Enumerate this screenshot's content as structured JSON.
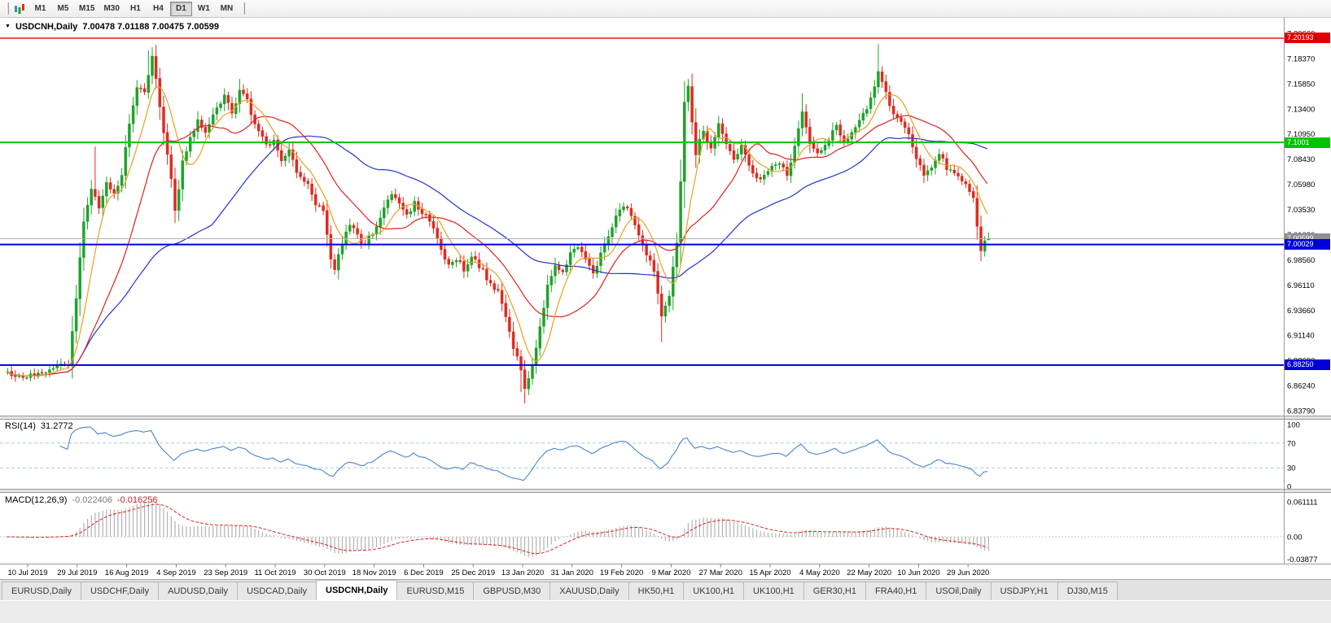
{
  "toolbar": {
    "timeframes": [
      {
        "label": "M1"
      },
      {
        "label": "M5"
      },
      {
        "label": "M15"
      },
      {
        "label": "M30"
      },
      {
        "label": "H1"
      },
      {
        "label": "H4"
      },
      {
        "label": "D1",
        "active": true
      },
      {
        "label": "W1"
      },
      {
        "label": "MN"
      }
    ]
  },
  "chart": {
    "symbol_title": "USDCNH,Daily",
    "ohlc_readout": "7.00478 7.01188 7.00475 7.00599",
    "rsi_name": "RSI(14)",
    "rsi_value": "31.2772",
    "macd_name": "MACD(12,26,9)",
    "macd_value_main": "-0.022406",
    "macd_value_signal": "-0.016256"
  },
  "chart_data": {
    "type": "candlestick",
    "title": "USDCNH,Daily",
    "open": "7.00478",
    "high": "7.01188",
    "low": "7.00475",
    "close": "7.00599",
    "price_range": [
      6.8379,
      7.2066
    ],
    "y_ticks": [
      "7.20660",
      "7.18370",
      "7.15850",
      "7.13400",
      "7.10950",
      "7.08430",
      "7.05980",
      "7.03530",
      "7.01080",
      "6.98560",
      "6.96110",
      "6.93660",
      "6.91140",
      "6.88690",
      "6.86240",
      "6.83790"
    ],
    "x_labels": [
      "10 Jul 2019",
      "29 Jul 2019",
      "16 Aug 2019",
      "4 Sep 2019",
      "23 Sep 2019",
      "11 Oct 2019",
      "30 Oct 2019",
      "18 Nov 2019",
      "6 Dec 2019",
      "25 Dec 2019",
      "13 Jan 2020",
      "31 Jan 2020",
      "19 Feb 2020",
      "9 Mar 2020",
      "27 Mar 2020",
      "15 Apr 2020",
      "4 May 2020",
      "22 May 2020",
      "10 Jun 2020",
      "29 Jun 2020"
    ],
    "h_lines": [
      {
        "price": 7.20193,
        "label": "7.20193",
        "color": "#e00000",
        "width": 1.4
      },
      {
        "price": 7.1001,
        "label": "7.1001",
        "color": "#00c400",
        "width": 2
      },
      {
        "price": 7.00599,
        "label": "7.00599",
        "color": "#b0b0b0",
        "tag": "#8f8f8f",
        "width": 1
      },
      {
        "price": 7.00029,
        "label": "7.00029",
        "color": "#0000d8",
        "width": 2
      },
      {
        "price": 6.8825,
        "label": "6.88250",
        "color": "#0000d8",
        "width": 2
      }
    ],
    "candle_count": 259,
    "anchors": [
      [
        0,
        6.876
      ],
      [
        4,
        6.87
      ],
      [
        9,
        6.874
      ],
      [
        13,
        6.88
      ],
      [
        16,
        6.884
      ],
      [
        18,
        6.945
      ],
      [
        19,
        6.985
      ],
      [
        20,
        7.02
      ],
      [
        22,
        7.055
      ],
      [
        24,
        7.035
      ],
      [
        26,
        7.06
      ],
      [
        28,
        7.048
      ],
      [
        30,
        7.07
      ],
      [
        32,
        7.12
      ],
      [
        34,
        7.155
      ],
      [
        36,
        7.15
      ],
      [
        38,
        7.183
      ],
      [
        39,
        7.16
      ],
      [
        41,
        7.11
      ],
      [
        43,
        7.062
      ],
      [
        44,
        7.032
      ],
      [
        46,
        7.08
      ],
      [
        48,
        7.105
      ],
      [
        50,
        7.12
      ],
      [
        52,
        7.112
      ],
      [
        54,
        7.128
      ],
      [
        57,
        7.145
      ],
      [
        59,
        7.128
      ],
      [
        61,
        7.152
      ],
      [
        63,
        7.14
      ],
      [
        65,
        7.118
      ],
      [
        68,
        7.096
      ],
      [
        70,
        7.102
      ],
      [
        72,
        7.084
      ],
      [
        74,
        7.092
      ],
      [
        76,
        7.07
      ],
      [
        79,
        7.058
      ],
      [
        81,
        7.04
      ],
      [
        83,
        7.034
      ],
      [
        85,
        6.988
      ],
      [
        86,
        6.976
      ],
      [
        88,
        7.002
      ],
      [
        90,
        7.02
      ],
      [
        92,
        7.008
      ],
      [
        94,
        7.0
      ],
      [
        96,
        7.012
      ],
      [
        98,
        7.026
      ],
      [
        101,
        7.05
      ],
      [
        103,
        7.038
      ],
      [
        105,
        7.028
      ],
      [
        107,
        7.04
      ],
      [
        110,
        7.028
      ],
      [
        112,
        7.014
      ],
      [
        114,
        6.994
      ],
      [
        116,
        6.98
      ],
      [
        118,
        6.986
      ],
      [
        120,
        6.976
      ],
      [
        122,
        6.99
      ],
      [
        125,
        6.974
      ],
      [
        127,
        6.96
      ],
      [
        129,
        6.954
      ],
      [
        131,
        6.93
      ],
      [
        133,
        6.9
      ],
      [
        135,
        6.878
      ],
      [
        136,
        6.862
      ],
      [
        138,
        6.882
      ],
      [
        140,
        6.92
      ],
      [
        142,
        6.962
      ],
      [
        144,
        6.978
      ],
      [
        146,
        6.972
      ],
      [
        148,
        6.992
      ],
      [
        150,
        7.0
      ],
      [
        152,
        6.984
      ],
      [
        154,
        6.97
      ],
      [
        156,
        6.99
      ],
      [
        158,
        7.01
      ],
      [
        160,
        7.026
      ],
      [
        162,
        7.04
      ],
      [
        164,
        7.028
      ],
      [
        166,
        7.008
      ],
      [
        168,
        6.992
      ],
      [
        170,
        6.975
      ],
      [
        172,
        6.93
      ],
      [
        174,
        6.952
      ],
      [
        176,
        7.0
      ],
      [
        177,
        7.06
      ],
      [
        178,
        7.14
      ],
      [
        179,
        7.155
      ],
      [
        181,
        7.09
      ],
      [
        183,
        7.112
      ],
      [
        185,
        7.094
      ],
      [
        187,
        7.118
      ],
      [
        189,
        7.098
      ],
      [
        191,
        7.082
      ],
      [
        193,
        7.096
      ],
      [
        195,
        7.078
      ],
      [
        197,
        7.064
      ],
      [
        200,
        7.072
      ],
      [
        203,
        7.082
      ],
      [
        205,
        7.068
      ],
      [
        207,
        7.098
      ],
      [
        209,
        7.128
      ],
      [
        211,
        7.098
      ],
      [
        213,
        7.088
      ],
      [
        216,
        7.1
      ],
      [
        218,
        7.118
      ],
      [
        220,
        7.098
      ],
      [
        222,
        7.108
      ],
      [
        224,
        7.12
      ],
      [
        226,
        7.132
      ],
      [
        228,
        7.156
      ],
      [
        229,
        7.172
      ],
      [
        231,
        7.148
      ],
      [
        233,
        7.128
      ],
      [
        235,
        7.122
      ],
      [
        237,
        7.106
      ],
      [
        239,
        7.082
      ],
      [
        241,
        7.07
      ],
      [
        243,
        7.076
      ],
      [
        245,
        7.09
      ],
      [
        247,
        7.074
      ],
      [
        249,
        7.068
      ],
      [
        251,
        7.064
      ],
      [
        252,
        7.062
      ],
      [
        254,
        7.046
      ],
      [
        255,
        7.018
      ],
      [
        256,
        6.994
      ],
      [
        257,
        7.004
      ],
      [
        258,
        7.006
      ]
    ],
    "wick_overrides": [
      {
        "i": 23,
        "high": 7.096
      },
      {
        "i": 37,
        "high": 7.19
      },
      {
        "i": 38,
        "high": 7.193
      },
      {
        "i": 61,
        "high": 7.162
      },
      {
        "i": 135,
        "low": 6.856
      },
      {
        "i": 136,
        "low": 6.845
      },
      {
        "i": 172,
        "low": 6.905
      },
      {
        "i": 178,
        "high": 7.16
      },
      {
        "i": 209,
        "high": 7.148
      },
      {
        "i": 229,
        "high": 7.196
      },
      {
        "i": 256,
        "low": 6.984
      },
      {
        "i": 258,
        "high": 7.01188,
        "low": 7.00475
      }
    ],
    "moving_averages": [
      {
        "period": 8,
        "color": "#e8a020",
        "name": "ma-fast-orange"
      },
      {
        "period": 21,
        "color": "#dd2222",
        "name": "ma-mid-red"
      },
      {
        "period": 55,
        "color": "#2233cc",
        "name": "ma-slow-blue"
      }
    ],
    "rsi": {
      "period": 14,
      "value": "31.2772",
      "levels": [
        "100",
        "70",
        "30",
        "0"
      ]
    },
    "macd": {
      "fast": 12,
      "slow": 26,
      "signal": 9,
      "value": "-0.022406",
      "signal_value": "-0.016256",
      "axis_labels": [
        "0.061111",
        "0.00",
        "-0.03877"
      ]
    },
    "colors": {
      "up": "#1fa32b",
      "down": "#dd2c20",
      "rsi": "#4a86c8",
      "rsi_levels": "#a8c8e8",
      "macd_hist": "#b2b2b2",
      "macd_signal": "#dd2222"
    }
  },
  "tabs": [
    {
      "label": "EURUSD,Daily"
    },
    {
      "label": "USDCHF,Daily"
    },
    {
      "label": "AUDUSD,Daily"
    },
    {
      "label": "USDCAD,Daily"
    },
    {
      "label": "USDCNH,Daily",
      "active": true
    },
    {
      "label": "EURUSD,M15"
    },
    {
      "label": "GBPUSD,M30"
    },
    {
      "label": "XAUUSD,Daily"
    },
    {
      "label": "HK50,H1"
    },
    {
      "label": "UK100,H1"
    },
    {
      "label": "UK100,H1"
    },
    {
      "label": "GER30,H1"
    },
    {
      "label": "FRA40,H1"
    },
    {
      "label": "USOil,Daily"
    },
    {
      "label": "USDJPY,H1"
    },
    {
      "label": "DJ30,M15"
    }
  ]
}
